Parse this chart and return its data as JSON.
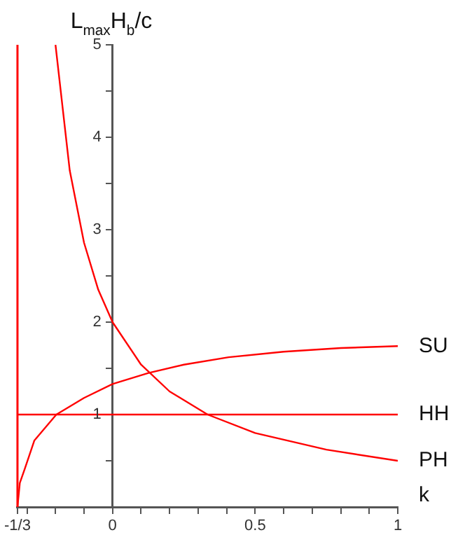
{
  "chart_data": {
    "type": "line",
    "xlabel": "k",
    "ylabel": "L$_{max}$H$_{b}$/c",
    "xlim": [
      -0.3333,
      1
    ],
    "ylim": [
      0,
      5
    ],
    "xticks": [
      {
        "value": -0.3333,
        "label": "-1/3"
      },
      {
        "value": -0.3,
        "label": null
      },
      {
        "value": -0.2,
        "label": null
      },
      {
        "value": -0.1,
        "label": null
      },
      0,
      {
        "value": 0.1,
        "label": null
      },
      {
        "value": 0.2,
        "label": null
      },
      {
        "value": 0.3,
        "label": null
      },
      {
        "value": 0.4,
        "label": null
      },
      0.5,
      {
        "value": 0.6,
        "label": null
      },
      {
        "value": 0.7,
        "label": null
      },
      {
        "value": 0.8,
        "label": null
      },
      {
        "value": 0.9,
        "label": null
      },
      1
    ],
    "yticks": [
      {
        "value": 0.5,
        "label": null
      },
      1,
      {
        "value": 1.5,
        "label": null
      },
      2,
      {
        "value": 2.5,
        "label": null
      },
      3,
      {
        "value": 3.5,
        "label": null
      },
      4,
      {
        "value": 4.5,
        "label": null
      },
      5
    ],
    "grid": false,
    "legend": false,
    "marker": "none",
    "line_style": "solid",
    "ref_lines": [
      {
        "axis": "x",
        "value": -0.3333,
        "color": "#ff0000"
      }
    ],
    "series": [
      {
        "name": "SU",
        "color": "#ff0000",
        "x": [
          -0.3333,
          -0.325,
          -0.308,
          -0.274,
          -0.197,
          -0.1,
          0,
          0.126,
          0.25,
          0.407,
          0.6,
          0.8,
          1
        ],
        "values": [
          0,
          0.26,
          0.41,
          0.72,
          1,
          1.18,
          1.33,
          1.45,
          1.54,
          1.62,
          1.68,
          1.72,
          1.74
        ]
      },
      {
        "name": "HH",
        "color": "#ff0000",
        "x": [
          -0.3333,
          1
        ],
        "values": [
          1,
          1
        ]
      },
      {
        "name": "PH",
        "color": "#ff0000",
        "x": [
          -0.2,
          -0.15,
          -0.1,
          -0.05,
          0,
          0.1,
          0.2,
          0.3333,
          0.5,
          0.75,
          1
        ],
        "values": [
          5,
          3.64,
          2.86,
          2.35,
          2,
          1.54,
          1.25,
          1,
          0.8,
          0.62,
          0.5
        ]
      }
    ]
  }
}
